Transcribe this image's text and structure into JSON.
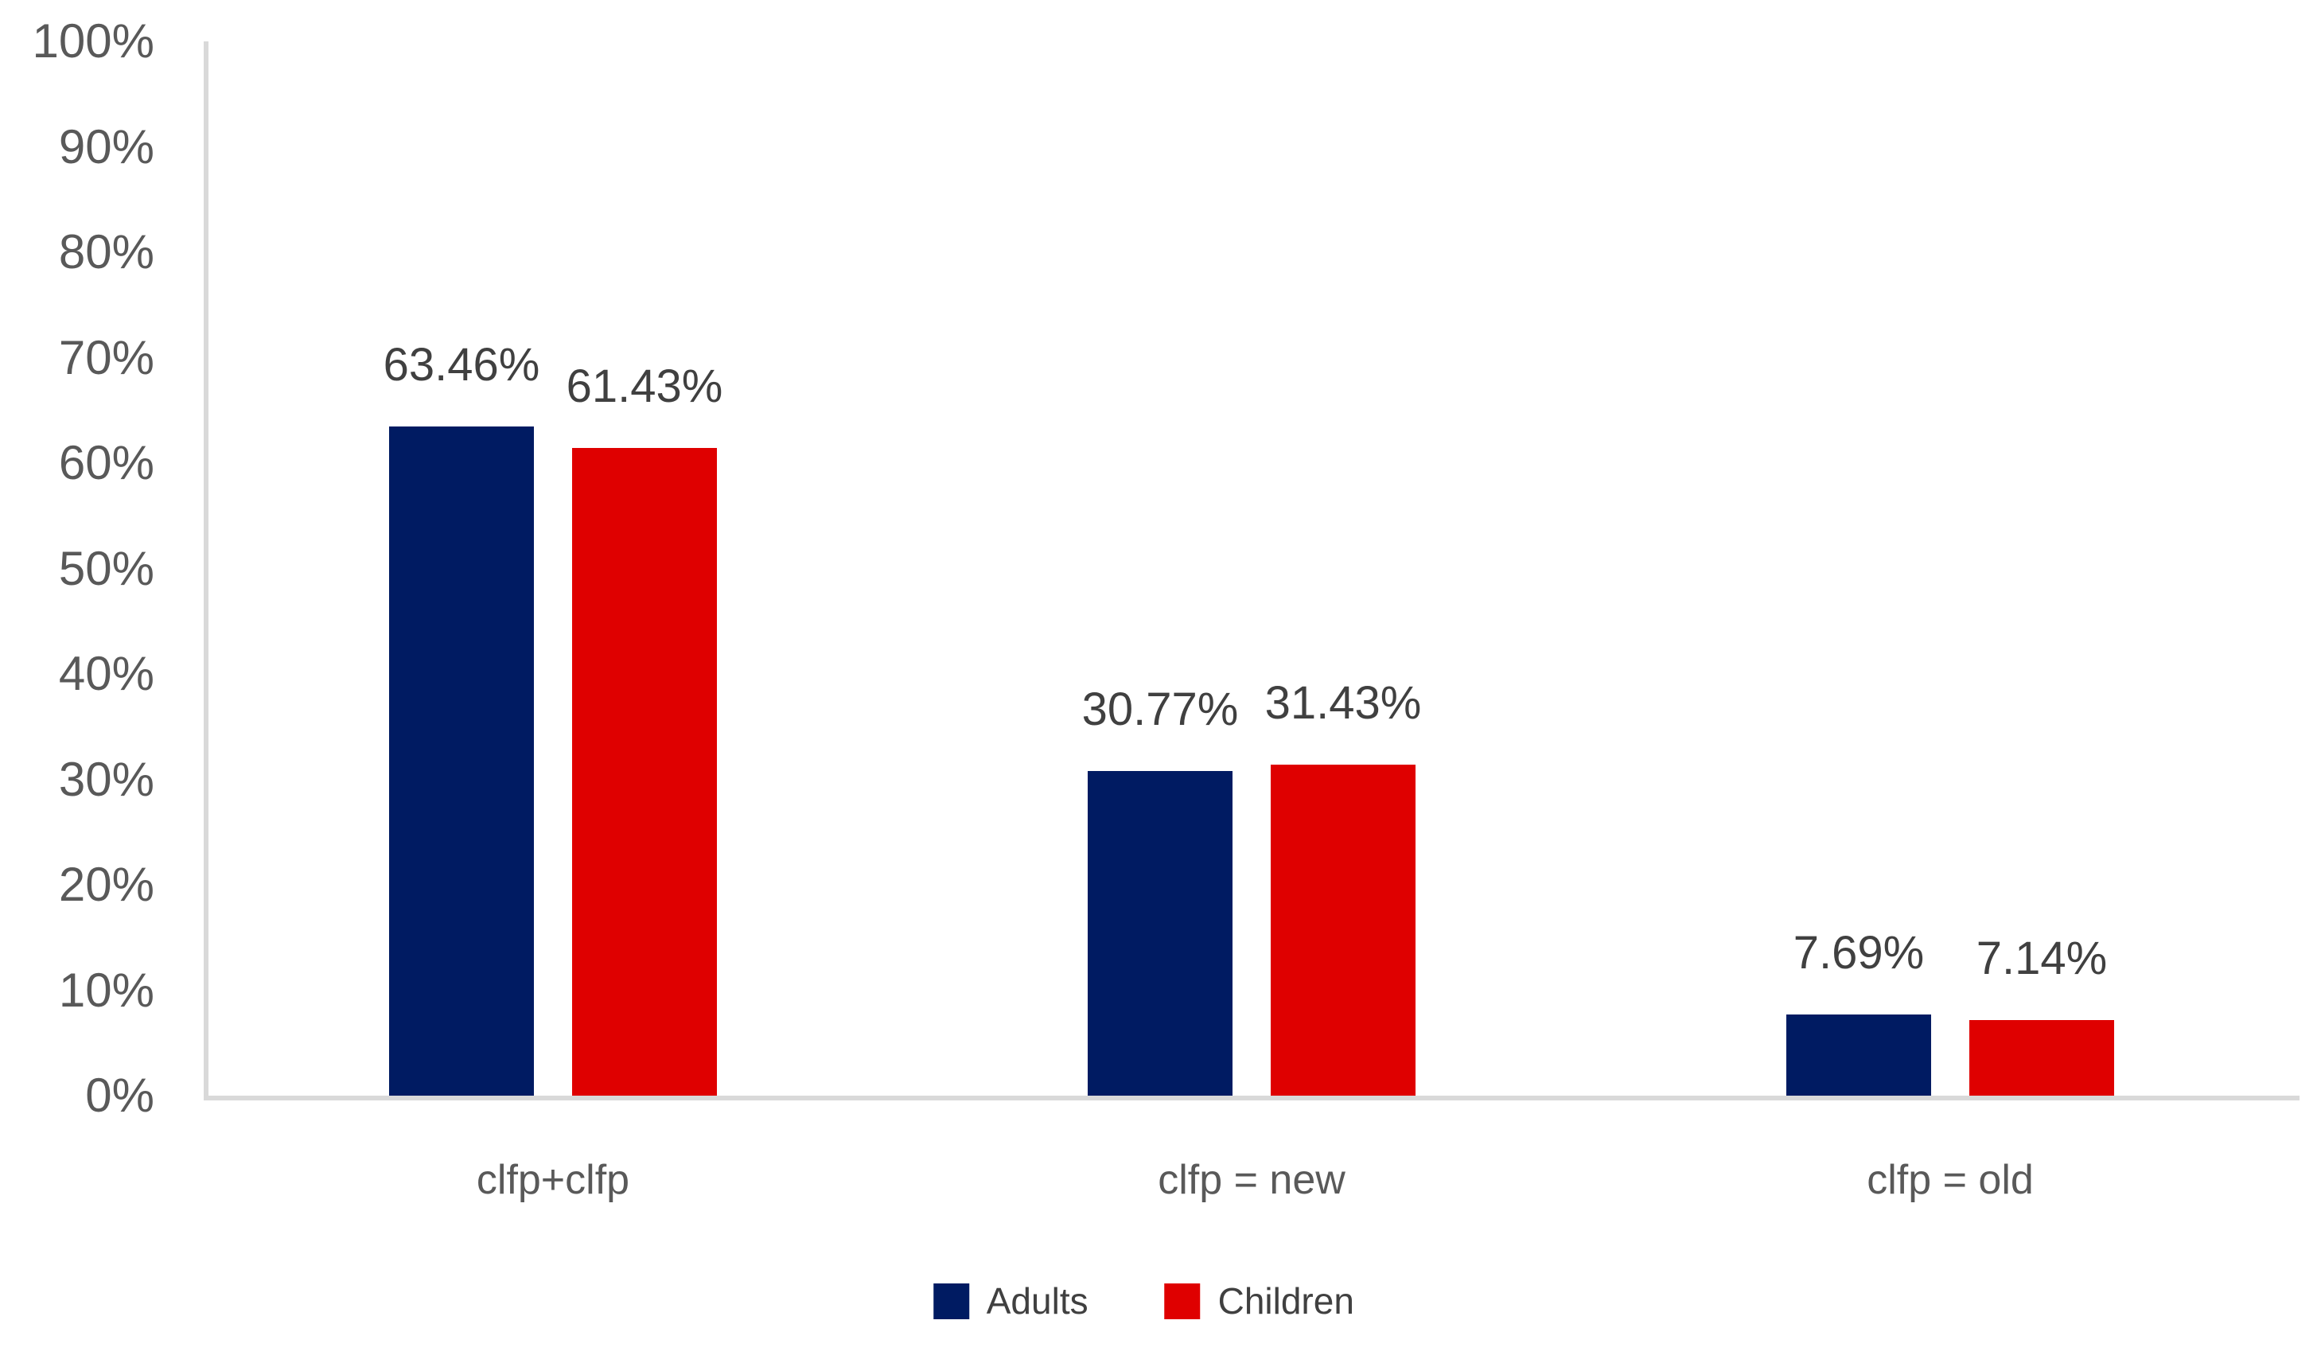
{
  "chart_data": {
    "type": "bar",
    "title": "",
    "xlabel": "",
    "ylabel": "",
    "categories": [
      "clfp+clfp",
      "clfp = new",
      "clfp = old"
    ],
    "series": [
      {
        "name": "Adults",
        "color": "#001B62",
        "values": [
          63.46,
          30.77,
          7.69
        ]
      },
      {
        "name": "Children",
        "color": "#DF0000",
        "values": [
          61.43,
          31.43,
          7.14
        ]
      }
    ],
    "value_labels": [
      [
        "63.46%",
        "61.43%"
      ],
      [
        "30.77%",
        "31.43%"
      ],
      [
        "7.69%",
        "7.14%"
      ]
    ],
    "y_ticks": [
      "100%",
      "90%",
      "80%",
      "70%",
      "60%",
      "50%",
      "40%",
      "30%",
      "20%",
      "10%",
      "0%"
    ],
    "ylim": [
      0,
      100
    ],
    "grid": false,
    "legend_position": "bottom",
    "axis_line_color": "#D9D9D9",
    "tick_label_color": "#595959",
    "data_label_color": "#404040"
  }
}
